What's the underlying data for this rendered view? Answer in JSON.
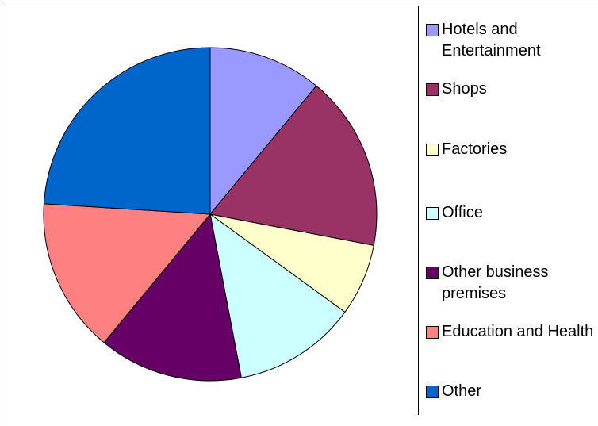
{
  "chart_data": {
    "type": "pie",
    "categories": [
      "Hotels and Entertainment",
      "Shops",
      "Factories",
      "Office",
      "Other business premises",
      "Education and Health",
      "Other"
    ],
    "values": [
      11,
      17,
      7,
      12,
      14,
      15,
      24
    ],
    "colors": [
      "#9999ff",
      "#993366",
      "#ffffcc",
      "#ccffff",
      "#660066",
      "#ff8080",
      "#0066cc"
    ],
    "legend": "right"
  }
}
